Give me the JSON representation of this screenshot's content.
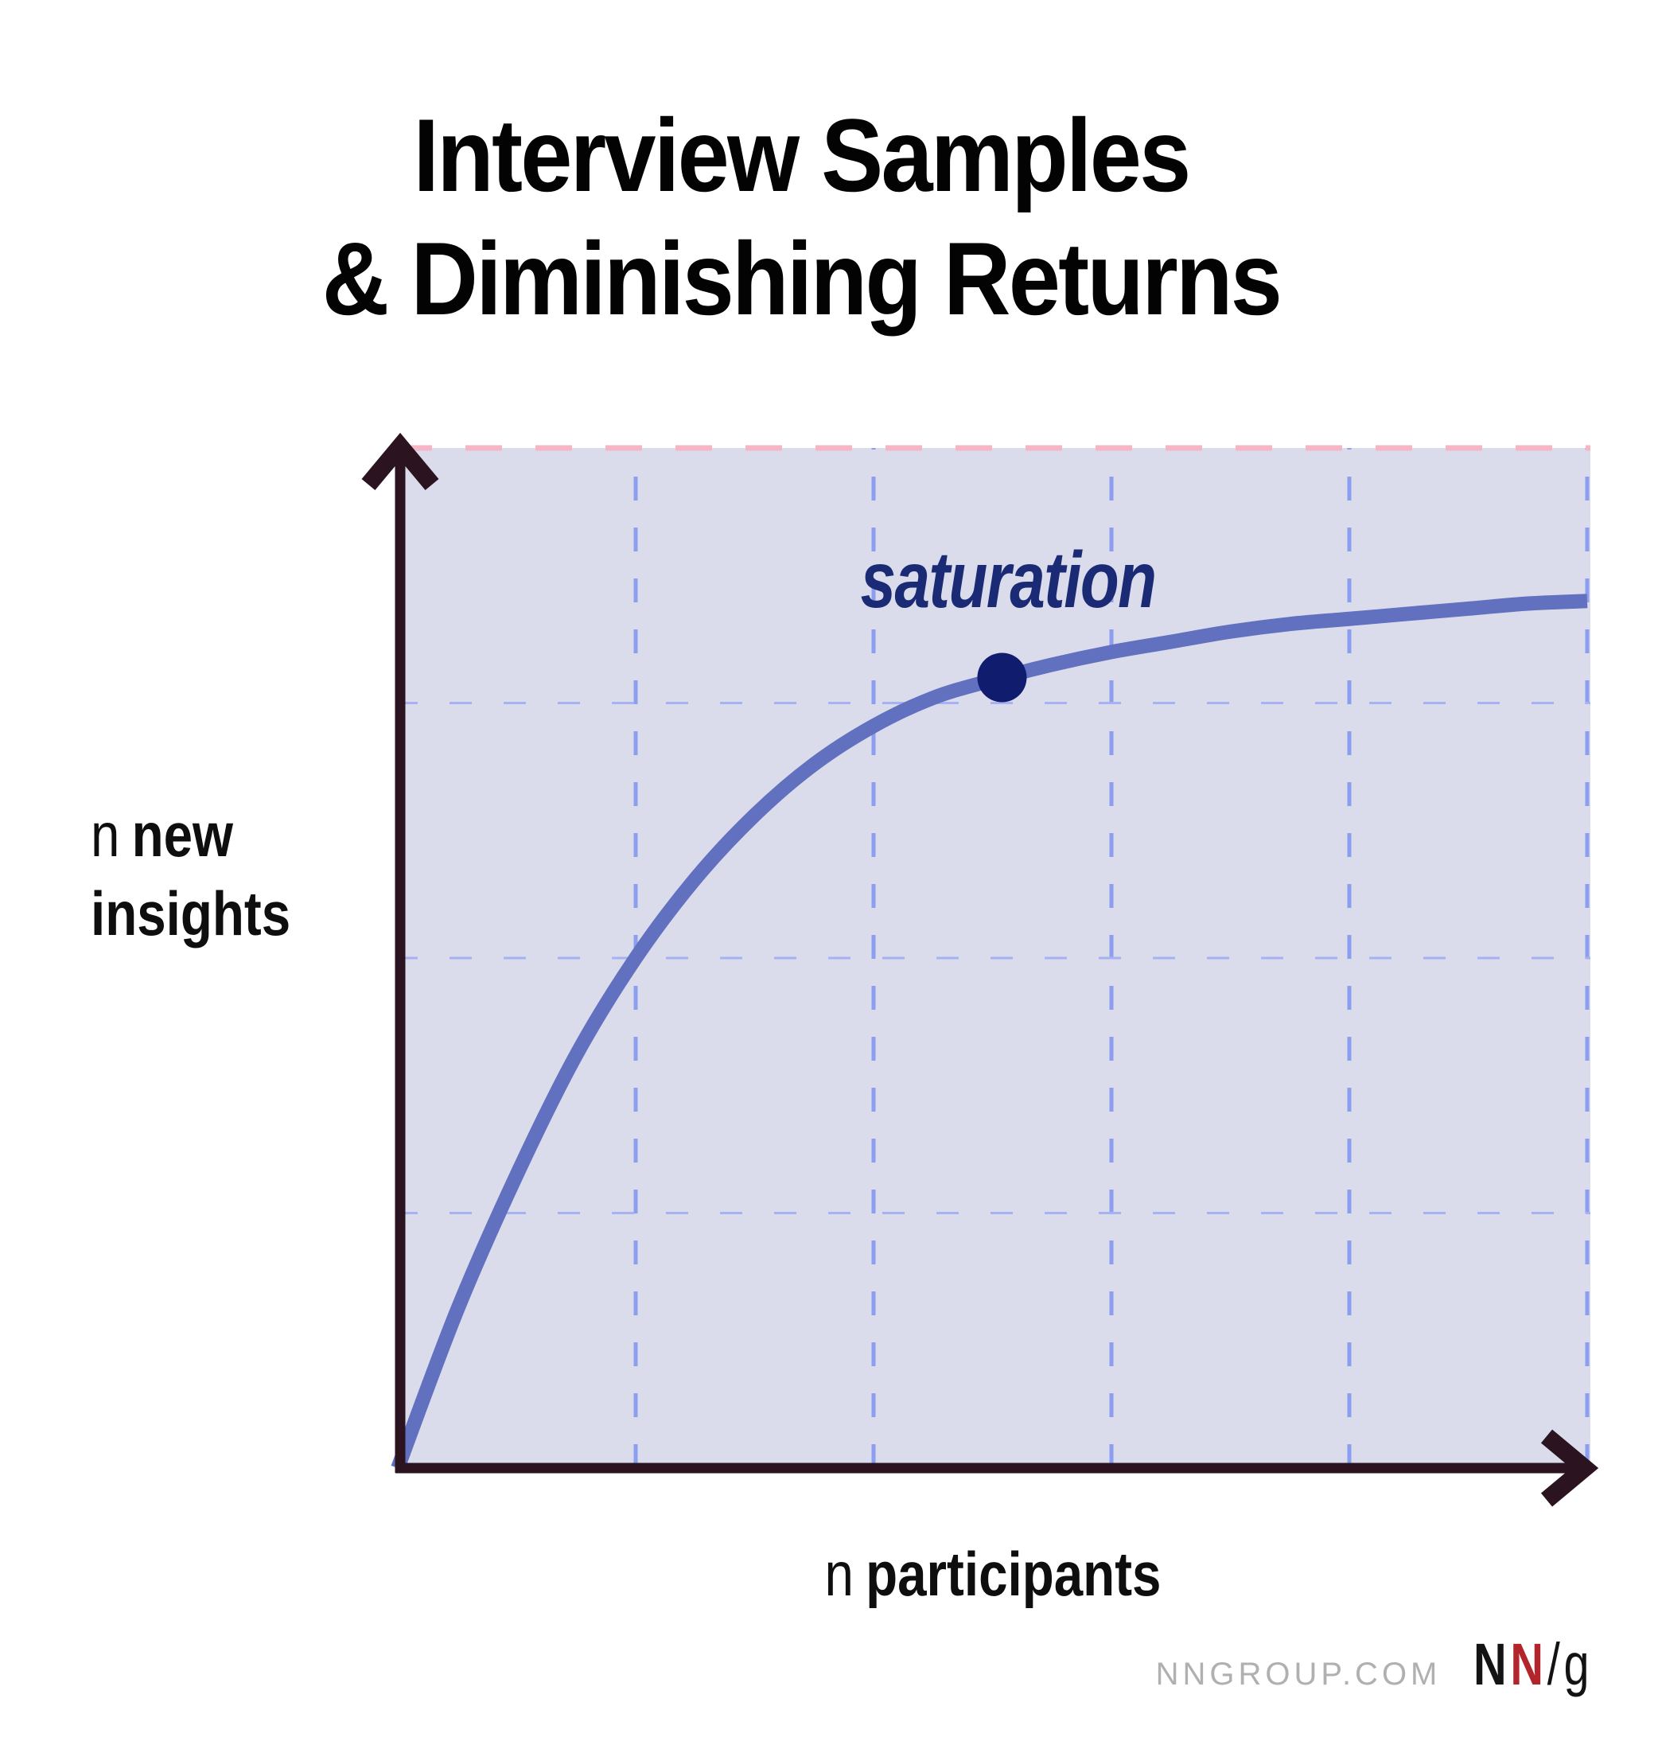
{
  "title": {
    "line1": "Interview Samples",
    "line2": "& Diminishing Returns"
  },
  "axis_labels": {
    "y_var": "n",
    "y_word1": "new",
    "y_word2": "insights",
    "x_var": "n",
    "x_word": "participants"
  },
  "footer": {
    "site": "NNGROUP.COM",
    "logo_n1": "N",
    "logo_n2": "N",
    "logo_slash": "/",
    "logo_g": "g"
  },
  "chart_data": {
    "type": "line",
    "title": "Interview Samples & Diminishing Returns",
    "xlabel": "n participants",
    "ylabel": "n new insights",
    "xlim": [
      0,
      5
    ],
    "ylim": [
      0,
      4
    ],
    "grid": "dashed gridlines, no tick labels, axes are unlabeled arrows",
    "legend": "none",
    "annotation": {
      "label": "saturation",
      "x": 2.54,
      "y": 3.1
    },
    "series": [
      {
        "name": "new insights vs participants (diminishing returns)",
        "points": [
          [
            0,
            0
          ],
          [
            0.25,
            0.62
          ],
          [
            0.5,
            1.15
          ],
          [
            0.75,
            1.62
          ],
          [
            1.0,
            2.0
          ],
          [
            1.25,
            2.31
          ],
          [
            1.5,
            2.56
          ],
          [
            1.75,
            2.76
          ],
          [
            2.0,
            2.91
          ],
          [
            2.25,
            3.02
          ],
          [
            2.5,
            3.09
          ],
          [
            2.75,
            3.15
          ],
          [
            3.0,
            3.2
          ],
          [
            3.25,
            3.24
          ],
          [
            3.5,
            3.28
          ],
          [
            3.75,
            3.31
          ],
          [
            4.0,
            3.33
          ],
          [
            4.25,
            3.35
          ],
          [
            4.5,
            3.37
          ],
          [
            4.75,
            3.39
          ],
          [
            5.0,
            3.4
          ]
        ]
      }
    ],
    "style": {
      "curve": "#6170bf",
      "dot": "#101c6e",
      "plot_bg": "#dadcec",
      "grid_blue_vertical": "#8c9ef0",
      "grid_blue_horizontal": "#a6b2f2",
      "grid_pink_top": "#f7b6c6",
      "axis": "#2b1320",
      "annotation_color": "#1b2a74",
      "title_color": "#030303",
      "site_color": "#b0b0b0",
      "logo_red": "#b2262b"
    }
  }
}
